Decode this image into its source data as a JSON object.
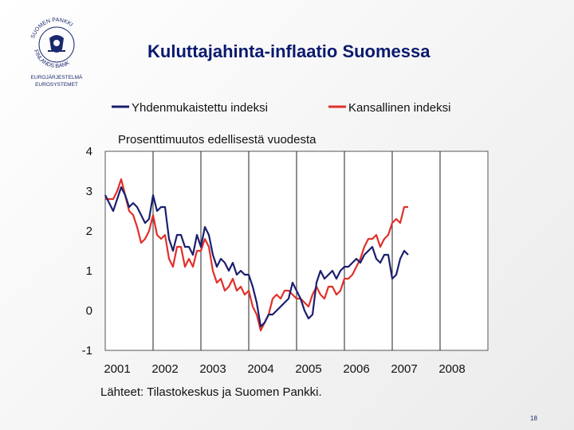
{
  "slide": {
    "title": "Kuluttajahinta-inflaatio Suomessa",
    "source": "Lähteet: Tilastokeskus ja Suomen Pankki.",
    "page_number": "18"
  },
  "logo": {
    "text_upper": "SUOMEN PANKKI",
    "text_lower": "FINLANDS BANK",
    "line1": "EUROJÄRJESTELMÄ",
    "line2": "EUROSYSTEMET",
    "color": "#1b2a6e"
  },
  "chart_data": {
    "type": "line",
    "title": "",
    "subtitle": "Prosenttimuutos edellisestä vuodesta",
    "xlabel": "",
    "ylabel": "",
    "x_categories": [
      "2001",
      "2002",
      "2003",
      "2004",
      "2005",
      "2006",
      "2007",
      "2008"
    ],
    "xlim": [
      2001,
      2009
    ],
    "ylim": [
      -1,
      4
    ],
    "yticks": [
      4,
      3,
      2,
      1,
      0,
      -1
    ],
    "ytick_labels": [
      "4",
      "3",
      "2",
      "1",
      "0",
      "-1"
    ],
    "gridlines": "vertical",
    "legend_position": "top",
    "series": [
      {
        "name": "Yhdenmukaistettu indeksi",
        "color": "#1b1f6e",
        "x": [
          2001.0,
          2001.083,
          2001.167,
          2001.25,
          2001.333,
          2001.417,
          2001.5,
          2001.583,
          2001.667,
          2001.75,
          2001.833,
          2001.917,
          2002.0,
          2002.083,
          2002.167,
          2002.25,
          2002.333,
          2002.417,
          2002.5,
          2002.583,
          2002.667,
          2002.75,
          2002.833,
          2002.917,
          2003.0,
          2003.083,
          2003.167,
          2003.25,
          2003.333,
          2003.417,
          2003.5,
          2003.583,
          2003.667,
          2003.75,
          2003.833,
          2003.917,
          2004.0,
          2004.083,
          2004.167,
          2004.25,
          2004.333,
          2004.417,
          2004.5,
          2004.583,
          2004.667,
          2004.75,
          2004.833,
          2004.917,
          2005.0,
          2005.083,
          2005.167,
          2005.25,
          2005.333,
          2005.417,
          2005.5,
          2005.583,
          2005.667,
          2005.75,
          2005.833,
          2005.917,
          2006.0,
          2006.083,
          2006.167,
          2006.25,
          2006.333,
          2006.417,
          2006.5,
          2006.583,
          2006.667,
          2006.75,
          2006.833,
          2006.917,
          2007.0,
          2007.083,
          2007.167,
          2007.25,
          2007.333
        ],
        "values": [
          2.9,
          2.7,
          2.5,
          2.8,
          3.1,
          2.9,
          2.6,
          2.7,
          2.6,
          2.4,
          2.2,
          2.3,
          2.9,
          2.5,
          2.6,
          2.6,
          1.8,
          1.5,
          1.9,
          1.9,
          1.6,
          1.6,
          1.4,
          1.9,
          1.6,
          2.1,
          1.9,
          1.4,
          1.1,
          1.3,
          1.2,
          1.0,
          1.2,
          0.9,
          1.0,
          0.9,
          0.9,
          0.6,
          0.2,
          -0.4,
          -0.3,
          -0.1,
          -0.1,
          0.0,
          0.1,
          0.2,
          0.3,
          0.7,
          0.5,
          0.3,
          0.0,
          -0.2,
          -0.1,
          0.7,
          1.0,
          0.8,
          0.9,
          1.0,
          0.8,
          1.0,
          1.1,
          1.1,
          1.2,
          1.3,
          1.2,
          1.4,
          1.5,
          1.6,
          1.3,
          1.2,
          1.4,
          1.4,
          0.8,
          0.9,
          1.3,
          1.5,
          1.4
        ]
      },
      {
        "name": "Kansallinen indeksi",
        "color": "#e0302a",
        "x": [
          2001.0,
          2001.083,
          2001.167,
          2001.25,
          2001.333,
          2001.417,
          2001.5,
          2001.583,
          2001.667,
          2001.75,
          2001.833,
          2001.917,
          2002.0,
          2002.083,
          2002.167,
          2002.25,
          2002.333,
          2002.417,
          2002.5,
          2002.583,
          2002.667,
          2002.75,
          2002.833,
          2002.917,
          2003.0,
          2003.083,
          2003.167,
          2003.25,
          2003.333,
          2003.417,
          2003.5,
          2003.583,
          2003.667,
          2003.75,
          2003.833,
          2003.917,
          2004.0,
          2004.083,
          2004.167,
          2004.25,
          2004.333,
          2004.417,
          2004.5,
          2004.583,
          2004.667,
          2004.75,
          2004.833,
          2004.917,
          2005.0,
          2005.083,
          2005.167,
          2005.25,
          2005.333,
          2005.417,
          2005.5,
          2005.583,
          2005.667,
          2005.75,
          2005.833,
          2005.917,
          2006.0,
          2006.083,
          2006.167,
          2006.25,
          2006.333,
          2006.417,
          2006.5,
          2006.583,
          2006.667,
          2006.75,
          2006.833,
          2006.917,
          2007.0,
          2007.083,
          2007.167,
          2007.25,
          2007.333
        ],
        "values": [
          2.8,
          2.8,
          2.8,
          3.0,
          3.3,
          2.9,
          2.5,
          2.4,
          2.1,
          1.7,
          1.8,
          2.0,
          2.4,
          1.9,
          1.8,
          1.9,
          1.3,
          1.1,
          1.6,
          1.6,
          1.1,
          1.3,
          1.1,
          1.5,
          1.5,
          1.8,
          1.6,
          1.0,
          0.7,
          0.8,
          0.5,
          0.6,
          0.8,
          0.5,
          0.6,
          0.4,
          0.5,
          0.1,
          -0.1,
          -0.5,
          -0.3,
          -0.1,
          0.3,
          0.4,
          0.3,
          0.5,
          0.5,
          0.4,
          0.3,
          0.3,
          0.2,
          0.1,
          0.4,
          0.6,
          0.4,
          0.3,
          0.6,
          0.6,
          0.4,
          0.5,
          0.8,
          0.8,
          0.9,
          1.1,
          1.3,
          1.6,
          1.8,
          1.8,
          1.9,
          1.6,
          1.8,
          1.9,
          2.2,
          2.3,
          2.2,
          2.6,
          2.6
        ]
      }
    ]
  }
}
